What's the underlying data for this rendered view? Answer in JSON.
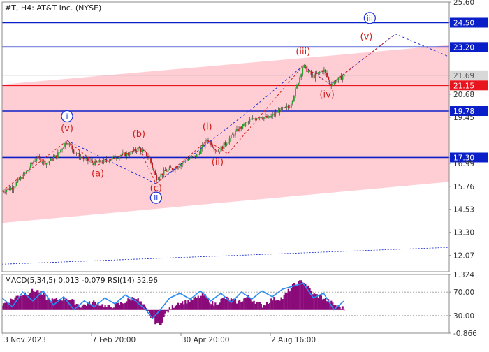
{
  "chart_data": {
    "type": "line",
    "title": "#T, H4:  AT&T Inc. (NYSE)",
    "instrument": "#T",
    "timeframe": "H4",
    "ylim": [
      11.2,
      25.6
    ],
    "x_labels": [
      "3 Nov 2023",
      "7 Feb 20:00",
      "30 Apr 20:00",
      "2 Aug 16:00"
    ],
    "price_ticks": [
      "25.60",
      "24.50",
      "23.20",
      "21.69",
      "21.15",
      "20.68",
      "19.78",
      "19.45",
      "17.30",
      "16.99",
      "15.76",
      "14.53",
      "13.30",
      "12.07"
    ],
    "current_price": "21.69",
    "colors": {
      "level_line": "#0a1fc8",
      "support_line": "#e8141e",
      "channel_fill": "#ffc4cd",
      "wave_red": "#d0201c",
      "wave_blue": "#1a2fd6",
      "candle_up": "#22a32a",
      "candle_down": "#c21a1a",
      "macd_hist": "#8a0a7a",
      "macd_signal": "#2a8cf5"
    },
    "horizontal_levels": [
      {
        "label": "24.50",
        "price": 24.5,
        "style": "blue"
      },
      {
        "label": "23.20",
        "price": 23.2,
        "style": "blue"
      },
      {
        "label": "21.15",
        "price": 21.15,
        "style": "red"
      },
      {
        "label": "19.78",
        "price": 19.78,
        "style": "blue"
      },
      {
        "label": "17.30",
        "price": 17.3,
        "style": "blue"
      }
    ],
    "channel": {
      "upper": [
        [
          0,
          21.2
        ],
        [
          1,
          23.3
        ]
      ],
      "lower": [
        [
          0,
          13.8
        ],
        [
          1,
          16.0
        ]
      ]
    },
    "dotted_trend": [
      [
        0,
        11.6
      ],
      [
        1,
        12.5
      ]
    ],
    "price_series": [
      [
        0.0,
        15.5
      ],
      [
        0.03,
        15.7
      ],
      [
        0.07,
        16.5
      ],
      [
        0.1,
        17.3
      ],
      [
        0.13,
        17.0
      ],
      [
        0.16,
        17.4
      ],
      [
        0.19,
        18.2
      ],
      [
        0.21,
        17.6
      ],
      [
        0.24,
        17.2
      ],
      [
        0.27,
        17.0
      ],
      [
        0.3,
        17.1
      ],
      [
        0.34,
        17.4
      ],
      [
        0.37,
        17.5
      ],
      [
        0.4,
        17.8
      ],
      [
        0.43,
        17.3
      ],
      [
        0.45,
        16.2
      ],
      [
        0.48,
        16.6
      ],
      [
        0.51,
        16.8
      ],
      [
        0.54,
        17.2
      ],
      [
        0.57,
        17.4
      ],
      [
        0.6,
        18.3
      ],
      [
        0.63,
        17.6
      ],
      [
        0.66,
        18.2
      ],
      [
        0.69,
        18.8
      ],
      [
        0.72,
        19.2
      ],
      [
        0.75,
        19.5
      ],
      [
        0.78,
        19.4
      ],
      [
        0.81,
        19.8
      ],
      [
        0.84,
        20.0
      ],
      [
        0.86,
        21.0
      ],
      [
        0.88,
        22.2
      ],
      [
        0.91,
        21.6
      ],
      [
        0.94,
        22.0
      ],
      [
        0.96,
        21.2
      ],
      [
        1.0,
        21.69
      ]
    ],
    "wave_path_blue": [
      [
        0.19,
        18.2
      ],
      [
        0.45,
        15.9
      ],
      [
        0.73,
        19.9
      ],
      [
        0.88,
        22.2
      ],
      [
        0.96,
        21.2
      ],
      [
        1.15,
        23.9
      ],
      [
        1.42,
        21.8
      ]
    ],
    "wave_path_red": [
      [
        0.0,
        15.5
      ],
      [
        0.19,
        18.2
      ],
      [
        0.28,
        16.9
      ],
      [
        0.4,
        17.8
      ],
      [
        0.45,
        15.9
      ],
      [
        0.6,
        18.2
      ],
      [
        0.66,
        17.5
      ],
      [
        0.88,
        22.2
      ],
      [
        0.96,
        21.2
      ],
      [
        1.15,
        23.9
      ]
    ],
    "wave_labels": [
      {
        "text": "i",
        "x": 0.19,
        "price": 19.35,
        "color": "blue",
        "circled": true
      },
      {
        "text": "(v)",
        "x": 0.19,
        "price": 18.7,
        "color": "red",
        "circled": false
      },
      {
        "text": "(a)",
        "x": 0.28,
        "price": 16.3,
        "color": "red",
        "circled": false
      },
      {
        "text": "(b)",
        "x": 0.4,
        "price": 18.4,
        "color": "red",
        "circled": false
      },
      {
        "text": "(c)",
        "x": 0.45,
        "price": 15.5,
        "color": "red",
        "circled": false
      },
      {
        "text": "ii",
        "x": 0.45,
        "price": 15.0,
        "color": "blue",
        "circled": true
      },
      {
        "text": "(i)",
        "x": 0.6,
        "price": 18.8,
        "color": "red",
        "circled": false
      },
      {
        "text": "(ii)",
        "x": 0.63,
        "price": 16.9,
        "color": "red",
        "circled": false
      },
      {
        "text": "(iii)",
        "x": 0.88,
        "price": 22.8,
        "color": "red",
        "circled": false
      },
      {
        "text": "(iv)",
        "x": 0.95,
        "price": 20.5,
        "color": "red",
        "circled": false
      },
      {
        "text": "(v)",
        "x": 1.065,
        "price": 23.6,
        "color": "red",
        "circled": false
      },
      {
        "text": "iii",
        "x": 1.075,
        "price": 24.6,
        "color": "blue",
        "circled": true
      }
    ],
    "indicator": {
      "label": "MACD(5,34,5) 0.013 -0.079 RSI(14) 52.96",
      "name": "MACD(5,34,5)",
      "macd_value": 0.013,
      "signal_value": -0.079,
      "rsi_period": 14,
      "rsi_value": 52.96,
      "ticks": [
        "1.324",
        "70.00",
        "30.00",
        "-0.866"
      ],
      "ylim": [
        -0.866,
        1.324
      ],
      "levels": [
        70,
        30
      ],
      "macd_hist": [
        [
          0.0,
          0.2
        ],
        [
          0.05,
          0.55
        ],
        [
          0.1,
          0.75
        ],
        [
          0.14,
          0.35
        ],
        [
          0.19,
          0.45
        ],
        [
          0.23,
          0.15
        ],
        [
          0.27,
          0.3
        ],
        [
          0.31,
          0.1
        ],
        [
          0.35,
          0.25
        ],
        [
          0.39,
          0.5
        ],
        [
          0.42,
          0.05
        ],
        [
          0.44,
          -0.35
        ],
        [
          0.46,
          -0.6
        ],
        [
          0.48,
          -0.1
        ],
        [
          0.51,
          0.25
        ],
        [
          0.55,
          0.35
        ],
        [
          0.59,
          0.55
        ],
        [
          0.62,
          0.2
        ],
        [
          0.65,
          0.45
        ],
        [
          0.69,
          0.3
        ],
        [
          0.72,
          0.5
        ],
        [
          0.76,
          0.15
        ],
        [
          0.79,
          0.4
        ],
        [
          0.82,
          0.45
        ],
        [
          0.85,
          0.9
        ],
        [
          0.88,
          1.1
        ],
        [
          0.91,
          0.6
        ],
        [
          0.94,
          0.45
        ],
        [
          0.97,
          0.2
        ],
        [
          1.0,
          0.05
        ]
      ],
      "rsi_series": [
        [
          0.0,
          60
        ],
        [
          0.03,
          45
        ],
        [
          0.06,
          70
        ],
        [
          0.09,
          55
        ],
        [
          0.12,
          72
        ],
        [
          0.15,
          48
        ],
        [
          0.18,
          62
        ],
        [
          0.21,
          40
        ],
        [
          0.24,
          55
        ],
        [
          0.27,
          45
        ],
        [
          0.3,
          60
        ],
        [
          0.33,
          50
        ],
        [
          0.36,
          65
        ],
        [
          0.39,
          55
        ],
        [
          0.42,
          40
        ],
        [
          0.44,
          25
        ],
        [
          0.46,
          38
        ],
        [
          0.49,
          60
        ],
        [
          0.52,
          68
        ],
        [
          0.55,
          58
        ],
        [
          0.58,
          72
        ],
        [
          0.61,
          55
        ],
        [
          0.64,
          68
        ],
        [
          0.67,
          52
        ],
        [
          0.7,
          70
        ],
        [
          0.73,
          58
        ],
        [
          0.76,
          72
        ],
        [
          0.79,
          62
        ],
        [
          0.82,
          75
        ],
        [
          0.85,
          80
        ],
        [
          0.88,
          85
        ],
        [
          0.91,
          60
        ],
        [
          0.94,
          68
        ],
        [
          0.97,
          40
        ],
        [
          1.0,
          55
        ]
      ]
    }
  }
}
